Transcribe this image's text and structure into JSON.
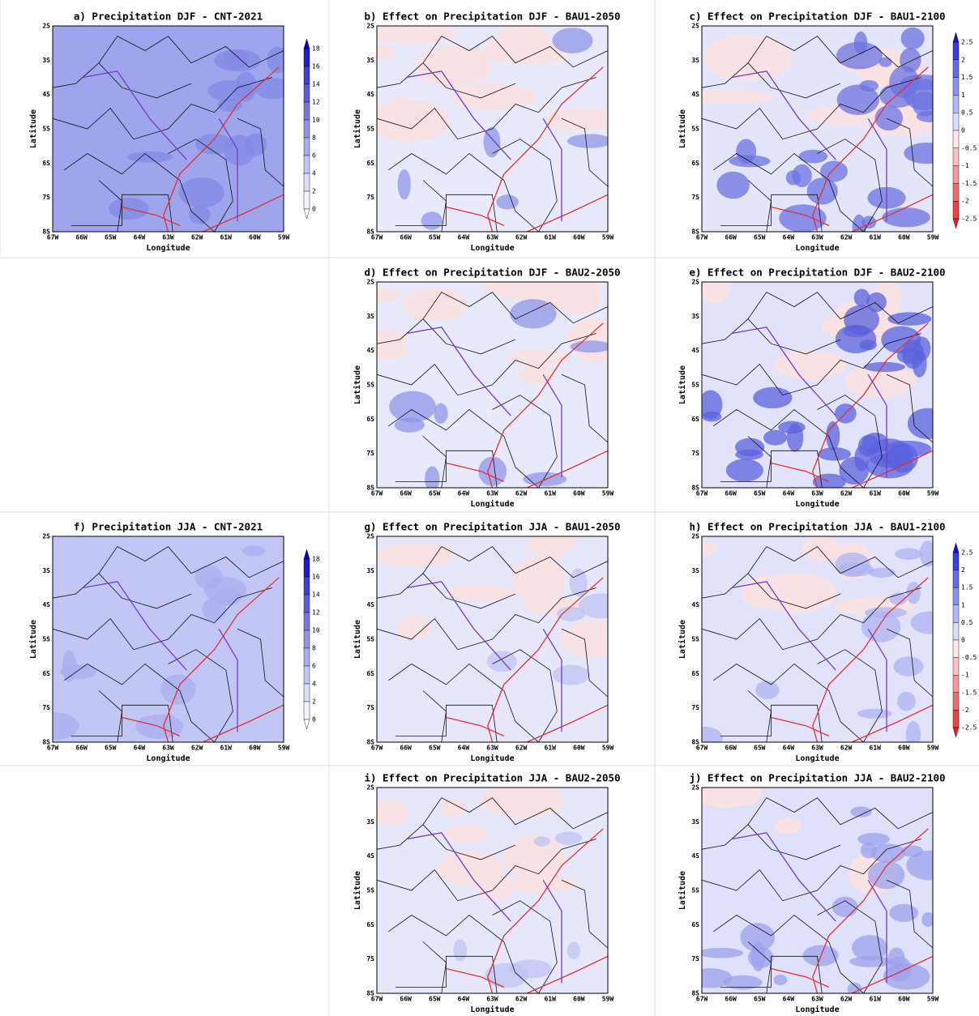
{
  "panels": [
    {
      "title": "a) Precipitation DJF - CNT-2021",
      "xlabel": "Longitude",
      "ylabel": "Latitude"
    },
    {
      "title": "b) Effect on Precipitation DJF - BAU1-2050",
      "xlabel": "Longitude",
      "ylabel": "Latitude"
    },
    {
      "title": "c) Effect on Precipitation DJF - BAU1-2100",
      "xlabel": "Longitude",
      "ylabel": "Latitude"
    },
    {
      "title": "d) Effect on Precipitation DJF - BAU2-2050",
      "xlabel": "Longitude",
      "ylabel": "Latitude"
    },
    {
      "title": "e) Effect on Precipitation DJF - BAU2-2100",
      "xlabel": "Longitude",
      "ylabel": "Latitude"
    },
    {
      "title": "f) Precipitation JJA - CNT-2021",
      "xlabel": "Longitude",
      "ylabel": "Latitude"
    },
    {
      "title": "g) Effect on Precipitation JJA - BAU1-2050",
      "xlabel": "Longitude",
      "ylabel": "Latitude"
    },
    {
      "title": "h) Effect on Precipitation JJA - BAU1-2100",
      "xlabel": "Longitude",
      "ylabel": "Latitude"
    },
    {
      "title": "i) Effect on Precipitation JJA - BAU2-2050",
      "xlabel": "Longitude",
      "ylabel": "Latitude"
    },
    {
      "title": "j) Effect on Precipitation JJA - BAU2-2100",
      "xlabel": "Longitude",
      "ylabel": "Latitude"
    }
  ],
  "xticks": [
    "67W",
    "66W",
    "65W",
    "64W",
    "63W",
    "62W",
    "61W",
    "60W",
    "59W"
  ],
  "yticks": [
    "2S",
    "3S",
    "4S",
    "5S",
    "6S",
    "7S",
    "8S"
  ],
  "colorbars": [
    {
      "labels": [
        18,
        16,
        14,
        12,
        10,
        8,
        6,
        4,
        2,
        0
      ]
    },
    {
      "labels": [
        2.5,
        2,
        1.5,
        1,
        0.5,
        0,
        -0.5,
        -1,
        -1.5,
        -2,
        -2.5
      ]
    },
    {
      "labels": [
        18,
        16,
        14,
        12,
        10,
        8,
        6,
        4,
        2,
        0
      ]
    },
    {
      "labels": [
        2.5,
        2,
        1.5,
        1,
        0.5,
        0,
        -0.5,
        -1,
        -1.5,
        -2,
        -2.5
      ]
    }
  ]
}
